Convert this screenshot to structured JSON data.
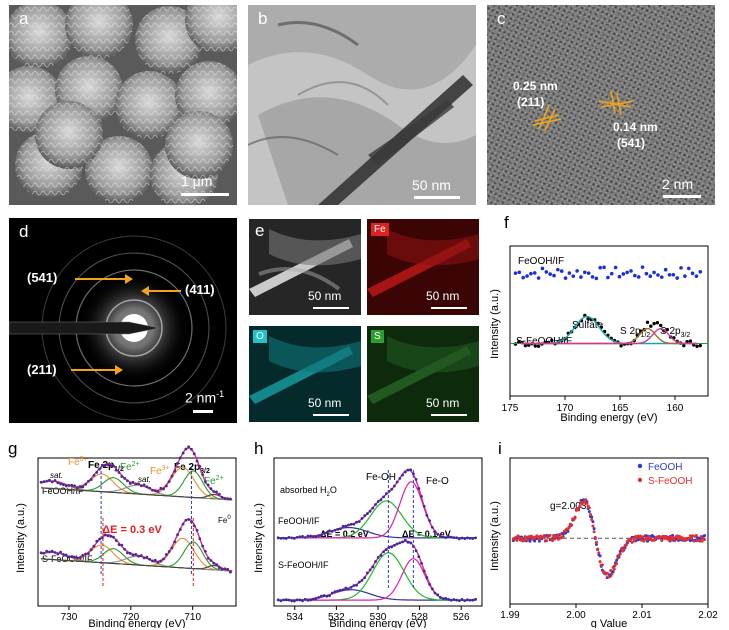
{
  "panels": {
    "a": {
      "label": "a",
      "scale": "1 μm"
    },
    "b": {
      "label": "b",
      "scale": "50 nm"
    },
    "c": {
      "label": "c",
      "scale": "2 nm",
      "ann1_d": "0.25 nm",
      "ann1_hkl": "(211)",
      "ann2_d": "0.14 nm",
      "ann2_hkl": "(541)"
    },
    "d": {
      "label": "d",
      "scale": "2 nm",
      "scale_sup": "-1",
      "rings": [
        "(541)",
        "(411)",
        "(211)"
      ]
    },
    "e": {
      "label": "e",
      "scale": "50 nm",
      "maps": [
        "Fe",
        "O",
        "S"
      ]
    }
  },
  "chart_data": [
    {
      "id": "f",
      "type": "scatter",
      "label": "f",
      "xlabel": "Binding energy (eV)",
      "ylabel": "Intensity (a.u.)",
      "xlim": [
        175,
        157
      ],
      "xticks": [
        175,
        170,
        165,
        160
      ],
      "series": [
        {
          "name": "FeOOH/IF",
          "color": "#1a2fd6",
          "baseline": 0.82
        },
        {
          "name": "S-FeOOH/IF",
          "color": "#000000",
          "baseline": 0.35
        }
      ],
      "peaks": [
        {
          "name": "Sulfate",
          "center": 168.0,
          "color": "#16a8a8"
        },
        {
          "name": "S 2p1/2",
          "center": 162.5,
          "color": "#a96a2a"
        },
        {
          "name": "S 2p3/2",
          "center": 161.3,
          "color": "#d13a9a"
        }
      ],
      "peak_labels": {
        "sulfate": "Sulfate",
        "s2p12": "S 2p",
        "s2p12_sub": "1/2",
        "s2p32": "S 2p",
        "s2p32_sub": "3/2"
      }
    },
    {
      "id": "g",
      "type": "line",
      "label": "g",
      "xlabel": "Binding energy (eV)",
      "ylabel": "Intensity (a.u.)",
      "xlim": [
        735,
        703
      ],
      "xticks": [
        730,
        720,
        710
      ],
      "series": [
        {
          "name": "FeOOH/IF"
        },
        {
          "name": "S-FeOOH/IF"
        }
      ],
      "peak_labels": {
        "fe3_left": "Fe",
        "fe3_left_sup": "3+",
        "fe2p12": "Fe 2p",
        "fe2p12_sub": "1/2",
        "fe2_left": "Fe",
        "fe2_left_sup": "2+",
        "fe3_mid": "Fe",
        "fe3_mid_sup": "3+",
        "fe2p32": "Fe 2p",
        "fe2p32_sub": "3/2",
        "fe2_right": "Fe",
        "fe2_right_sup": "2+",
        "sat_left": "sat.",
        "sat_mid": "sat.",
        "fe0": "Fe",
        "fe0_sup": "0"
      },
      "delta": "ΔE = 0.3 eV"
    },
    {
      "id": "h",
      "type": "line",
      "label": "h",
      "xlabel": "Binding energy (eV)",
      "ylabel": "Intensity (a.u.)",
      "xlim": [
        535,
        525
      ],
      "xticks": [
        534,
        532,
        530,
        528,
        526
      ],
      "series": [
        {
          "name": "FeOOH/IF"
        },
        {
          "name": "S-FeOOH/IF"
        }
      ],
      "components": [
        {
          "name": "absorbed H2O",
          "center": 531.4,
          "color": "#333399"
        },
        {
          "name": "Fe-OH",
          "center": 529.6,
          "color": "#22bb22"
        },
        {
          "name": "Fe-O",
          "center": 528.4,
          "color": "#dd22aa"
        }
      ],
      "peak_labels": {
        "feoh": "Fe-OH",
        "feo": "Fe-O",
        "h2o": "absorbed H",
        "h2o_sub": "2",
        "h2o_end": "O"
      },
      "deltas": [
        "ΔE = 0.2 eV",
        "ΔE = 0.1 eV"
      ]
    },
    {
      "id": "i",
      "type": "scatter",
      "label": "i",
      "xlabel": "g Value",
      "ylabel": "Intensity (a.u.)",
      "xlim": [
        1.99,
        2.02
      ],
      "xticks": [
        "1.99",
        "2.00",
        "2.01",
        "2.02"
      ],
      "series": [
        {
          "name": "FeOOH",
          "color": "#2a3bd8"
        },
        {
          "name": "S-FeOOH",
          "color": "#e23030"
        }
      ],
      "annotation": "g=2.003"
    }
  ]
}
